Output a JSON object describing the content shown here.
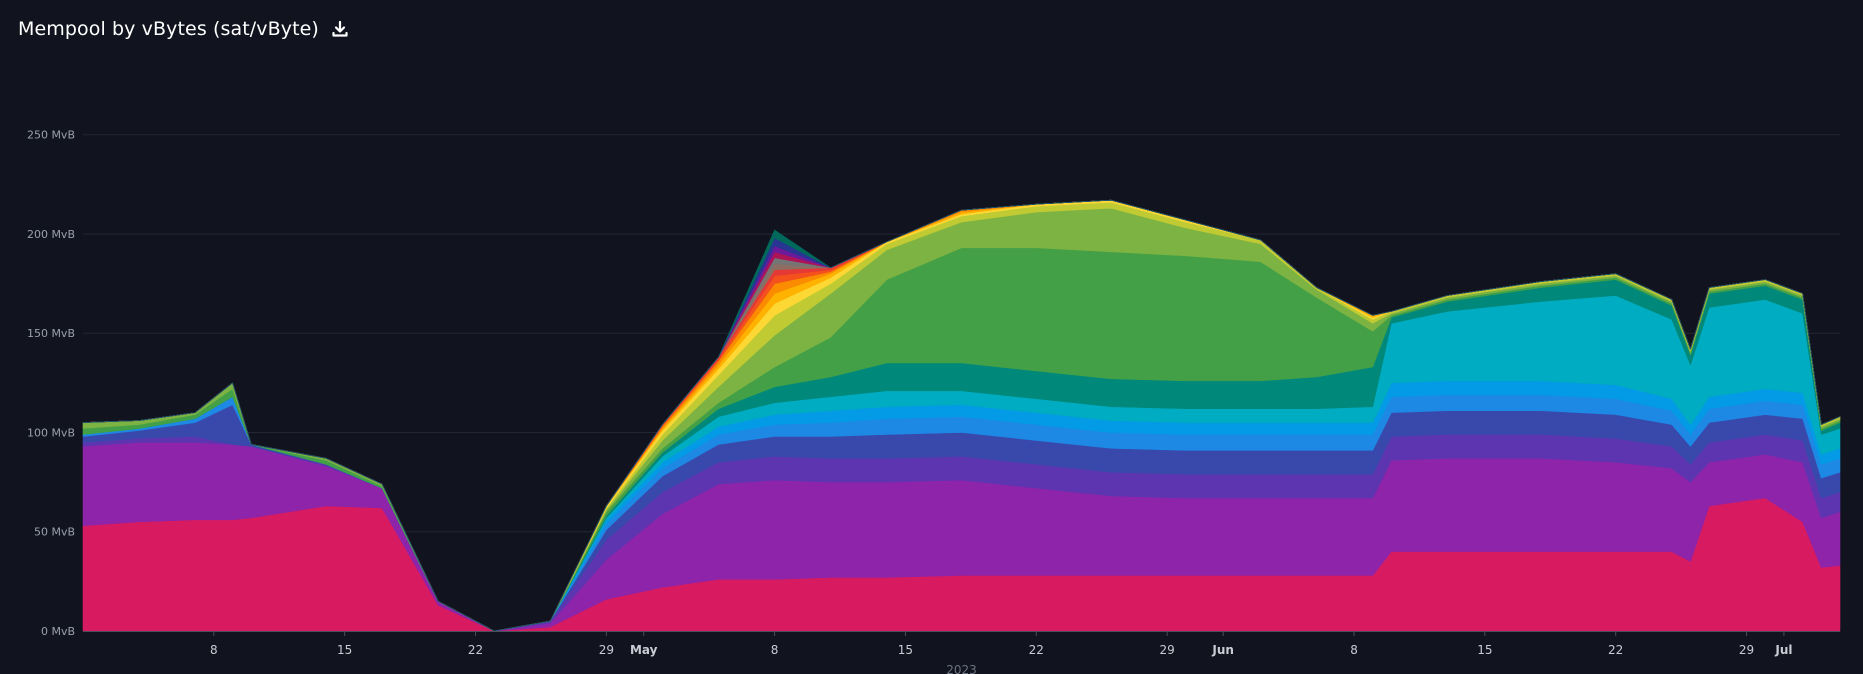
{
  "header": {
    "title": "Mempool by vBytes (sat/vByte)",
    "download_icon": "download-icon"
  },
  "chart_data": {
    "type": "area",
    "stacked": true,
    "grid": true,
    "legend": "none",
    "ylim": [
      0,
      270
    ],
    "yticks": [
      0,
      50,
      100,
      150,
      200,
      250
    ],
    "ytick_labels": [
      "0 MvB",
      "50 MvB",
      "100 MvB",
      "150 MvB",
      "200 MvB",
      "250 MvB"
    ],
    "xlabel": "2023",
    "xlim": [
      "2023-04-01",
      "2023-07-04"
    ],
    "xticks": [
      {
        "date": "2023-04-08",
        "label": "8",
        "major": false
      },
      {
        "date": "2023-04-15",
        "label": "15",
        "major": false
      },
      {
        "date": "2023-04-22",
        "label": "22",
        "major": false
      },
      {
        "date": "2023-04-29",
        "label": "29",
        "major": false
      },
      {
        "date": "2023-05-01",
        "label": "May",
        "major": true
      },
      {
        "date": "2023-05-08",
        "label": "8",
        "major": false
      },
      {
        "date": "2023-05-15",
        "label": "15",
        "major": false
      },
      {
        "date": "2023-05-22",
        "label": "22",
        "major": false
      },
      {
        "date": "2023-05-29",
        "label": "29",
        "major": false
      },
      {
        "date": "2023-06-01",
        "label": "Jun",
        "major": true
      },
      {
        "date": "2023-06-08",
        "label": "8",
        "major": false
      },
      {
        "date": "2023-06-15",
        "label": "15",
        "major": false
      },
      {
        "date": "2023-06-22",
        "label": "22",
        "major": false
      },
      {
        "date": "2023-06-29",
        "label": "29",
        "major": false
      },
      {
        "date": "2023-07-01",
        "label": "Jul",
        "major": true
      }
    ],
    "x": [
      "2023-04-01",
      "2023-04-04",
      "2023-04-07",
      "2023-04-09",
      "2023-04-10",
      "2023-04-14",
      "2023-04-17",
      "2023-04-20",
      "2023-04-23",
      "2023-04-26",
      "2023-04-29",
      "2023-05-02",
      "2023-05-05",
      "2023-05-08",
      "2023-05-11",
      "2023-05-14",
      "2023-05-18",
      "2023-05-22",
      "2023-05-26",
      "2023-05-30",
      "2023-06-03",
      "2023-06-06",
      "2023-06-09",
      "2023-06-10",
      "2023-06-13",
      "2023-06-18",
      "2023-06-22",
      "2023-06-25",
      "2023-06-26",
      "2023-06-27",
      "2023-06-30",
      "2023-07-02",
      "2023-07-03",
      "2023-07-04"
    ],
    "series": [
      {
        "color": "#d81b60",
        "values": [
          53,
          55,
          56,
          56,
          57,
          63,
          62,
          13,
          0,
          2,
          16,
          22,
          26,
          26,
          27,
          27,
          28,
          28,
          28,
          28,
          28,
          28,
          28,
          40,
          40,
          40,
          40,
          40,
          35,
          63,
          67,
          55,
          32,
          33
        ]
      },
      {
        "color": "#8e24aa",
        "values": [
          40,
          40,
          39,
          38,
          36,
          20,
          10,
          2,
          0,
          2,
          20,
          37,
          48,
          50,
          48,
          48,
          48,
          44,
          40,
          39,
          39,
          39,
          39,
          46,
          47,
          47,
          45,
          42,
          40,
          22,
          22,
          30,
          25,
          27
        ]
      },
      {
        "color": "#5e35b1",
        "values": [
          2,
          2,
          3,
          0,
          0,
          1,
          0,
          0,
          0,
          1,
          10,
          11,
          11,
          12,
          12,
          12,
          12,
          12,
          12,
          12,
          12,
          12,
          12,
          12,
          12,
          12,
          12,
          11,
          9,
          10,
          10,
          11,
          10,
          10
        ]
      },
      {
        "color": "#3949ab",
        "values": [
          3,
          4,
          7,
          20,
          1,
          0,
          0,
          0,
          0,
          0,
          5,
          8,
          9,
          10,
          11,
          12,
          12,
          12,
          12,
          12,
          12,
          12,
          12,
          12,
          12,
          12,
          12,
          11,
          9,
          10,
          10,
          11,
          10,
          10
        ]
      },
      {
        "color": "#1e88e5",
        "values": [
          1,
          1,
          2,
          4,
          0,
          0,
          0,
          0,
          0,
          0,
          3,
          4,
          5,
          6,
          7,
          8,
          8,
          8,
          8,
          8,
          8,
          8,
          8,
          8,
          8,
          8,
          8,
          7,
          6,
          7,
          7,
          7,
          7,
          7
        ]
      },
      {
        "color": "#039be5",
        "values": [
          0,
          0,
          0,
          0,
          0,
          0,
          0,
          0,
          0,
          0,
          2,
          3,
          4,
          5,
          6,
          6,
          6,
          6,
          6,
          6,
          6,
          6,
          6,
          7,
          7,
          7,
          7,
          6,
          5,
          6,
          6,
          6,
          5,
          5
        ]
      },
      {
        "color": "#00acc1",
        "values": [
          0,
          0,
          0,
          0,
          0,
          0,
          0,
          0,
          0,
          0,
          1,
          3,
          5,
          6,
          7,
          8,
          7,
          7,
          7,
          7,
          7,
          7,
          8,
          30,
          35,
          40,
          45,
          40,
          30,
          45,
          45,
          40,
          10,
          10
        ]
      },
      {
        "color": "#00897b",
        "values": [
          0,
          0,
          0,
          0,
          0,
          0,
          0,
          0,
          0,
          0,
          1,
          2,
          4,
          8,
          10,
          14,
          14,
          14,
          14,
          14,
          14,
          16,
          20,
          3,
          5,
          7,
          8,
          7,
          5,
          7,
          7,
          7,
          2,
          3
        ]
      },
      {
        "color": "#43a047",
        "values": [
          3,
          2,
          2,
          4,
          0,
          2,
          1,
          0,
          0,
          0,
          2,
          2,
          3,
          10,
          20,
          42,
          58,
          62,
          64,
          63,
          60,
          40,
          18,
          1,
          1,
          1,
          1,
          1,
          1,
          1,
          1,
          1,
          1,
          1
        ]
      },
      {
        "color": "#7cb342",
        "values": [
          3,
          2,
          1,
          3,
          0,
          1,
          1,
          0,
          0,
          0,
          1,
          4,
          8,
          16,
          22,
          15,
          13,
          18,
          22,
          14,
          9,
          4,
          4,
          1,
          1,
          1,
          1,
          1,
          1,
          1,
          1,
          1,
          1,
          1
        ]
      },
      {
        "color": "#c0ca33",
        "values": [
          0,
          0,
          0,
          0,
          0,
          0,
          0,
          0,
          0,
          0,
          1,
          3,
          6,
          10,
          5,
          3,
          3,
          3,
          3,
          3,
          2,
          1,
          2,
          1,
          1,
          1,
          1,
          1,
          1,
          1,
          1,
          1,
          1,
          1
        ]
      },
      {
        "color": "#fdd835",
        "values": [
          0,
          0,
          0,
          0,
          0,
          0,
          0,
          0,
          0,
          0,
          1,
          2,
          3,
          6,
          3,
          1,
          1,
          1,
          1,
          1,
          0,
          0,
          1,
          0,
          0,
          0,
          0,
          0,
          0,
          0,
          0,
          0,
          0,
          0
        ]
      },
      {
        "color": "#ffb300",
        "values": [
          0,
          0,
          0,
          0,
          0,
          0,
          0,
          0,
          0,
          0,
          0,
          1,
          2,
          5,
          2,
          0,
          1,
          0,
          0,
          0,
          0,
          0,
          1,
          0,
          0,
          0,
          0,
          0,
          0,
          0,
          0,
          0,
          0,
          0
        ]
      },
      {
        "color": "#fb8c00",
        "values": [
          0,
          0,
          0,
          0,
          0,
          0,
          0,
          0,
          0,
          0,
          0,
          1,
          2,
          5,
          1,
          0,
          1,
          0,
          0,
          0,
          0,
          0,
          0,
          0,
          0,
          0,
          0,
          0,
          0,
          0,
          0,
          0,
          0,
          0
        ]
      },
      {
        "color": "#f4511e",
        "values": [
          0,
          0,
          0,
          0,
          0,
          0,
          0,
          0,
          0,
          0,
          0,
          1,
          1,
          4,
          1,
          0,
          0,
          0,
          0,
          0,
          0,
          0,
          0,
          0,
          0,
          0,
          0,
          0,
          0,
          0,
          0,
          0,
          0,
          0
        ]
      },
      {
        "color": "#e53935",
        "values": [
          0,
          0,
          0,
          0,
          0,
          0,
          0,
          0,
          0,
          0,
          0,
          0,
          1,
          3,
          1,
          0,
          0,
          0,
          0,
          0,
          0,
          0,
          0,
          0,
          0,
          0,
          0,
          0,
          0,
          0,
          0,
          0,
          0,
          0
        ]
      },
      {
        "color": "#8d6e63",
        "values": [
          0,
          0,
          0,
          0,
          0,
          0,
          0,
          0,
          0,
          0,
          0,
          0,
          0,
          3,
          0,
          0,
          0,
          0,
          0,
          0,
          0,
          0,
          0,
          0,
          0,
          0,
          0,
          0,
          0,
          0,
          0,
          0,
          0,
          0
        ]
      },
      {
        "color": "#757575",
        "values": [
          0,
          0,
          0,
          0,
          0,
          0,
          0,
          0,
          0,
          0,
          0,
          0,
          0,
          3,
          0,
          0,
          0,
          0,
          0,
          0,
          0,
          0,
          0,
          0,
          0,
          0,
          0,
          0,
          0,
          0,
          0,
          0,
          0,
          0
        ]
      },
      {
        "color": "#ad1457",
        "values": [
          0,
          0,
          0,
          0,
          0,
          0,
          0,
          0,
          0,
          0,
          0,
          0,
          0,
          3,
          0,
          0,
          0,
          0,
          0,
          0,
          0,
          0,
          0,
          0,
          0,
          0,
          0,
          0,
          0,
          0,
          0,
          0,
          0,
          0
        ]
      },
      {
        "color": "#6a1b9a",
        "values": [
          0,
          0,
          0,
          0,
          0,
          0,
          0,
          0,
          0,
          0,
          0,
          0,
          0,
          3,
          0,
          0,
          0,
          0,
          0,
          0,
          0,
          0,
          0,
          0,
          0,
          0,
          0,
          0,
          0,
          0,
          0,
          0,
          0,
          0
        ]
      },
      {
        "color": "#283593",
        "values": [
          0,
          0,
          0,
          0,
          0,
          0,
          0,
          0,
          0,
          0,
          0,
          0,
          0,
          4,
          0,
          0,
          0,
          0,
          0,
          0,
          0,
          0,
          0,
          0,
          0,
          0,
          0,
          0,
          0,
          0,
          0,
          0,
          0,
          0
        ]
      },
      {
        "color": "#00695c",
        "values": [
          0,
          0,
          0,
          0,
          0,
          0,
          0,
          0,
          0,
          0,
          0,
          0,
          0,
          4,
          0,
          0,
          0,
          0,
          0,
          0,
          0,
          0,
          0,
          0,
          0,
          0,
          0,
          0,
          0,
          0,
          0,
          0,
          0,
          0
        ]
      }
    ]
  }
}
